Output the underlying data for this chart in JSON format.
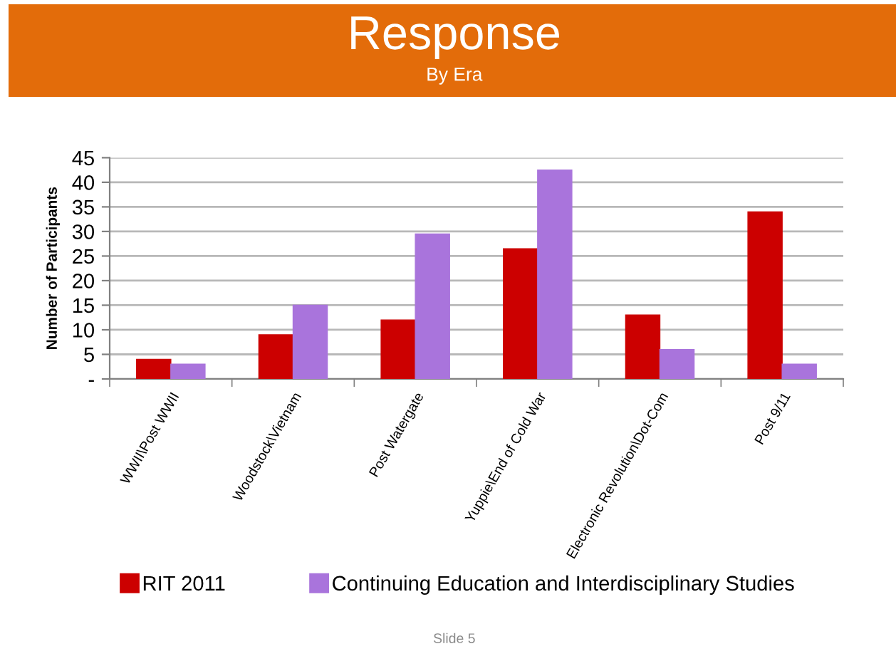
{
  "chart_data": {
    "type": "bar",
    "title": "Response",
    "subtitle": "By Era",
    "ylabel": "Number of Participants",
    "categories": [
      "WWII\\Post WWII",
      "Woodstock\\Vietnam",
      "Post Watergate",
      "Yuppie\\End of Cold War",
      "Electronic Revolution\\Dot-Com",
      "Post 9/11"
    ],
    "series": [
      {
        "name": "RIT 2011",
        "color": "#cc0000",
        "values": [
          4,
          9,
          12,
          26.5,
          13,
          34
        ]
      },
      {
        "name": "Continuing Education and Interdisciplinary Studies",
        "color": "#a974dc",
        "values": [
          3,
          15,
          29.5,
          42.5,
          6,
          3
        ]
      }
    ],
    "ylim": [
      0,
      45
    ],
    "yticks": [
      {
        "value": 0,
        "label": "-"
      },
      5,
      10,
      15,
      20,
      25,
      30,
      35,
      40,
      45
    ],
    "grid": "y",
    "legend": "bottom",
    "annotations": [
      "Slide 5"
    ]
  }
}
